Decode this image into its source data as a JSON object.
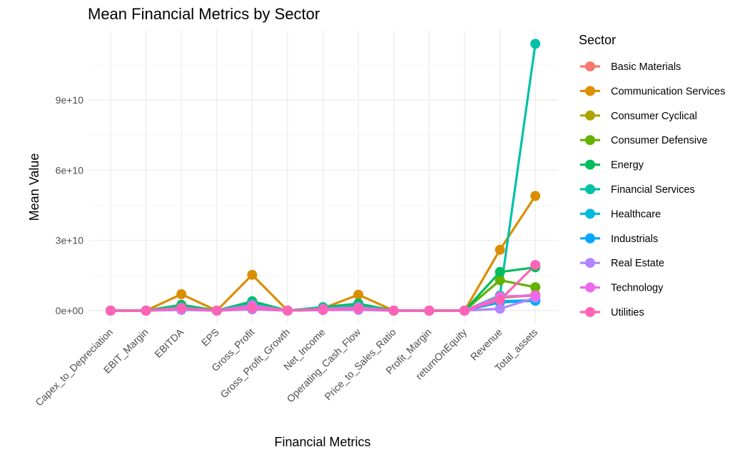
{
  "chart_data": {
    "type": "line",
    "title": "Mean Financial Metrics by Sector",
    "xlabel": "Financial Metrics",
    "ylabel": "Mean Value",
    "ylim": [
      -2000000000,
      114000000000
    ],
    "yticks": [
      0,
      30000000000,
      60000000000,
      90000000000
    ],
    "ytick_labels": [
      "0e+00",
      "3e+10",
      "6e+10",
      "9e+10"
    ],
    "grid": true,
    "legend_title": "Sector",
    "legend_position": "right",
    "categories": [
      "Capex_to_Depreciation",
      "EBIT_Margin",
      "EBITDA",
      "EPS",
      "Gross_Profit",
      "Gross_Profit_Growth",
      "Net_Income",
      "Operating_Cash_Flow",
      "Price_to_Sales_Ratio",
      "Profit_Margin",
      "returnOnEquity",
      "Revenue",
      "Total_assets"
    ],
    "series": [
      {
        "name": "Basic Materials",
        "color": "#F8766D",
        "values": [
          0,
          0,
          1500000000,
          0,
          2000000000,
          0,
          700000000,
          1200000000,
          0,
          0,
          0,
          5500000000,
          6500000000
        ]
      },
      {
        "name": "Communication Services",
        "color": "#DB8E00",
        "values": [
          0,
          0,
          7000000000,
          0,
          15300000000,
          0,
          1000000000,
          6800000000,
          0,
          0,
          0,
          26000000000,
          49000000000
        ]
      },
      {
        "name": "Consumer Cyclical",
        "color": "#AEA200",
        "values": [
          0,
          0,
          1000000000,
          0,
          1500000000,
          0,
          500000000,
          900000000,
          0,
          0,
          0,
          5500000000,
          6800000000
        ]
      },
      {
        "name": "Consumer Defensive",
        "color": "#64B200",
        "values": [
          0,
          0,
          2000000000,
          0,
          3500000000,
          0,
          1200000000,
          2200000000,
          0,
          0,
          0,
          13000000000,
          10000000000
        ]
      },
      {
        "name": "Energy",
        "color": "#00BD5C",
        "values": [
          0,
          0,
          2500000000,
          0,
          4000000000,
          0,
          1500000000,
          3000000000,
          0,
          0,
          0,
          16500000000,
          18500000000
        ]
      },
      {
        "name": "Financial Services",
        "color": "#00C1A7",
        "values": [
          0,
          0,
          1500000000,
          0,
          3000000000,
          0,
          1200000000,
          2000000000,
          0,
          0,
          0,
          6500000000,
          114000000000
        ]
      },
      {
        "name": "Healthcare",
        "color": "#00BADE",
        "values": [
          0,
          0,
          800000000,
          0,
          1500000000,
          0,
          400000000,
          800000000,
          0,
          0,
          0,
          4000000000,
          4500000000
        ]
      },
      {
        "name": "Industrials",
        "color": "#00A6FF",
        "values": [
          0,
          0,
          600000000,
          0,
          1000000000,
          0,
          300000000,
          600000000,
          0,
          0,
          0,
          3500000000,
          4200000000
        ]
      },
      {
        "name": "Real Estate",
        "color": "#B385FF",
        "values": [
          0,
          0,
          300000000,
          0,
          500000000,
          0,
          200000000,
          300000000,
          0,
          0,
          0,
          800000000,
          5500000000
        ]
      },
      {
        "name": "Technology",
        "color": "#EF67EB",
        "values": [
          0,
          0,
          1200000000,
          0,
          2200000000,
          0,
          700000000,
          1300000000,
          0,
          0,
          0,
          6000000000,
          6500000000
        ]
      },
      {
        "name": "Utilities",
        "color": "#FF63B6",
        "values": [
          0,
          0,
          1000000000,
          0,
          1200000000,
          0,
          400000000,
          900000000,
          0,
          0,
          0,
          4500000000,
          19500000000
        ]
      }
    ]
  }
}
